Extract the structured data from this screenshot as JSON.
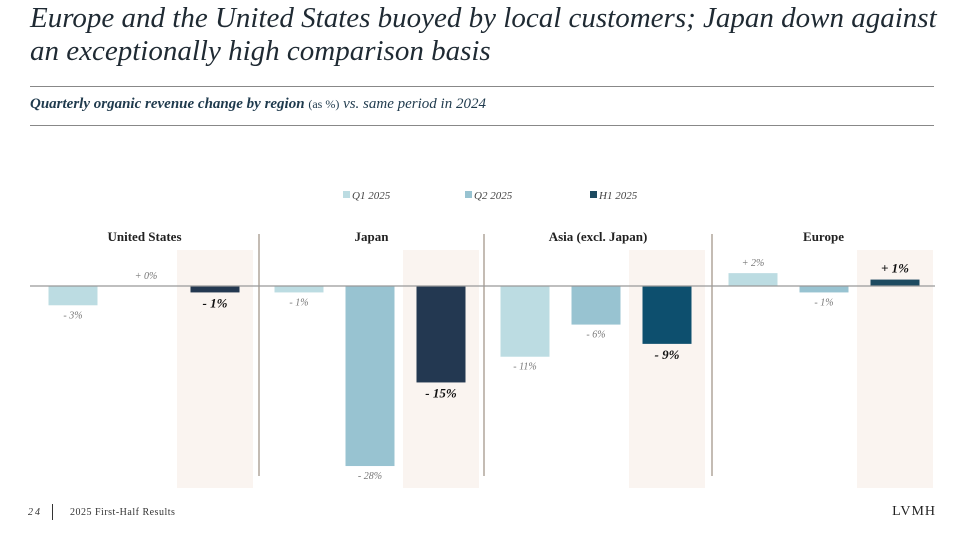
{
  "header": {
    "title": "Europe and the United States buoyed by local customers; Japan down against an exceptionally high comparison basis",
    "subtitle_bold": "Quarterly organic revenue change by region",
    "subtitle_unit": "(as %)",
    "subtitle_rest": "vs. same period in 2024"
  },
  "footer": {
    "page": "24",
    "label": "2025 First-Half Results",
    "logo": "LVMH"
  },
  "chart_data": {
    "type": "bar",
    "categories": [
      "United States",
      "Japan",
      "Asia (excl. Japan)",
      "Europe"
    ],
    "series": [
      {
        "name": "Q1 2025",
        "values": [
          -3,
          -1,
          -11,
          2
        ],
        "labels": [
          "- 3%",
          "- 1%",
          "- 11%",
          "+ 2%"
        ],
        "color": "#bcdce2"
      },
      {
        "name": "Q2 2025",
        "values": [
          0,
          -28,
          -6,
          -1
        ],
        "labels": [
          "+ 0%",
          "- 28%",
          "- 6%",
          "- 1%"
        ],
        "color": "#98c3d1"
      },
      {
        "name": "H1 2025",
        "values": [
          -1,
          -15,
          -9,
          1
        ],
        "labels": [
          "- 1%",
          "- 15%",
          "- 9%",
          "+ 1%"
        ],
        "colors": [
          "#233851",
          "#233851",
          "#0d4f6e",
          "#1d4a60"
        ],
        "color": "#1d4a60"
      }
    ],
    "legend": "top-center",
    "highlight_series": "H1 2025",
    "highlight_color": "#faf4f0",
    "grid": false
  }
}
